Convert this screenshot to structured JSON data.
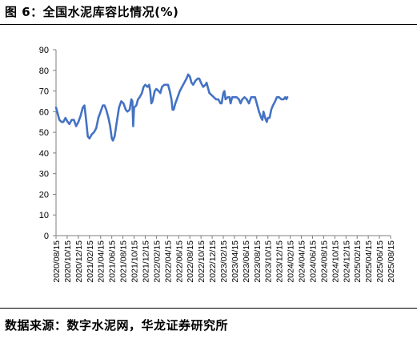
{
  "header": {
    "title": "图 6：全国水泥库容比情况(%)"
  },
  "footer": {
    "source": "数据来源：数字水泥网，华龙证券研究所"
  },
  "chart_data": {
    "type": "line",
    "title": "",
    "xlabel": "",
    "ylabel": "",
    "ylim": [
      0,
      90
    ],
    "yticks": [
      0,
      10,
      20,
      30,
      40,
      50,
      60,
      70,
      80,
      90
    ],
    "grid": false,
    "line_color": "#4472C4",
    "x_tick_labels": [
      "2020/08/15",
      "2020/10/15",
      "2020/12/15",
      "2021/02/15",
      "2021/04/15",
      "2021/06/15",
      "2021/08/15",
      "2021/10/15",
      "2021/12/15",
      "2022/02/15",
      "2022/04/15",
      "2022/06/15",
      "2022/08/15",
      "2022/10/15",
      "2022/12/15",
      "2023/02/15",
      "2023/04/15",
      "2023/06/15",
      "2023/08/15",
      "2023/10/15",
      "2023/12/15",
      "2024/02/15",
      "2024/04/15",
      "2024/06/15",
      "2024/08/15",
      "2024/10/15",
      "2024/12/15",
      "2025/02/15",
      "2025/04/15",
      "2025/06/15",
      "2025/08/15"
    ],
    "series": [
      {
        "values": [
          [
            0,
            62
          ],
          [
            0.1,
            60
          ],
          [
            0.3,
            56
          ],
          [
            0.5,
            55
          ],
          [
            0.65,
            55
          ],
          [
            0.85,
            57
          ],
          [
            1.05,
            55
          ],
          [
            1.2,
            54
          ],
          [
            1.4,
            56
          ],
          [
            1.6,
            56
          ],
          [
            1.8,
            53
          ],
          [
            2.0,
            55
          ],
          [
            2.2,
            58
          ],
          [
            2.4,
            62
          ],
          [
            2.55,
            63
          ],
          [
            2.7,
            56
          ],
          [
            2.85,
            48
          ],
          [
            3.0,
            47
          ],
          [
            3.2,
            49
          ],
          [
            3.4,
            50
          ],
          [
            3.6,
            52
          ],
          [
            3.8,
            57
          ],
          [
            4.0,
            60
          ],
          [
            4.2,
            63
          ],
          [
            4.35,
            63
          ],
          [
            4.5,
            61
          ],
          [
            4.7,
            57
          ],
          [
            4.85,
            53
          ],
          [
            5.0,
            47
          ],
          [
            5.1,
            46
          ],
          [
            5.25,
            48
          ],
          [
            5.45,
            55
          ],
          [
            5.65,
            62
          ],
          [
            5.85,
            65
          ],
          [
            6.05,
            64
          ],
          [
            6.25,
            61
          ],
          [
            6.4,
            60
          ],
          [
            6.6,
            61
          ],
          [
            6.75,
            66
          ],
          [
            6.85,
            65
          ],
          [
            6.92,
            53
          ],
          [
            7.0,
            62
          ],
          [
            7.2,
            63
          ],
          [
            7.35,
            66
          ],
          [
            7.5,
            67
          ],
          [
            7.7,
            69
          ],
          [
            7.85,
            72
          ],
          [
            8.0,
            73
          ],
          [
            8.2,
            72
          ],
          [
            8.35,
            73
          ],
          [
            8.45,
            70
          ],
          [
            8.55,
            64
          ],
          [
            8.65,
            65
          ],
          [
            8.85,
            70
          ],
          [
            9.0,
            71
          ],
          [
            9.2,
            70
          ],
          [
            9.35,
            69
          ],
          [
            9.5,
            72
          ],
          [
            9.7,
            73
          ],
          [
            9.9,
            73
          ],
          [
            10.05,
            73
          ],
          [
            10.2,
            70
          ],
          [
            10.35,
            66
          ],
          [
            10.45,
            61
          ],
          [
            10.55,
            61
          ],
          [
            10.7,
            64
          ],
          [
            10.9,
            67
          ],
          [
            11.1,
            70
          ],
          [
            11.3,
            72
          ],
          [
            11.5,
            74
          ],
          [
            11.7,
            76
          ],
          [
            11.85,
            78
          ],
          [
            12.0,
            77
          ],
          [
            12.15,
            74
          ],
          [
            12.3,
            73
          ],
          [
            12.5,
            75
          ],
          [
            12.7,
            76
          ],
          [
            12.85,
            76
          ],
          [
            13.0,
            74
          ],
          [
            13.2,
            72
          ],
          [
            13.4,
            73
          ],
          [
            13.5,
            74
          ],
          [
            13.6,
            72
          ],
          [
            13.75,
            69
          ],
          [
            13.95,
            68
          ],
          [
            14.15,
            67
          ],
          [
            14.35,
            66
          ],
          [
            14.55,
            66
          ],
          [
            14.75,
            64
          ],
          [
            14.85,
            64
          ],
          [
            15.0,
            69
          ],
          [
            15.1,
            70
          ],
          [
            15.2,
            66
          ],
          [
            15.4,
            67
          ],
          [
            15.55,
            67
          ],
          [
            15.65,
            64
          ],
          [
            15.8,
            67
          ],
          [
            16.0,
            67
          ],
          [
            16.2,
            67
          ],
          [
            16.4,
            66
          ],
          [
            16.55,
            64
          ],
          [
            16.7,
            66
          ],
          [
            16.9,
            67
          ],
          [
            17.1,
            66
          ],
          [
            17.3,
            64
          ],
          [
            17.5,
            67
          ],
          [
            17.7,
            67
          ],
          [
            17.85,
            67
          ],
          [
            18.0,
            64
          ],
          [
            18.2,
            60
          ],
          [
            18.4,
            57
          ],
          [
            18.5,
            56
          ],
          [
            18.6,
            60
          ],
          [
            18.75,
            57
          ],
          [
            18.9,
            55
          ],
          [
            19.0,
            57
          ],
          [
            19.15,
            57
          ],
          [
            19.3,
            61
          ],
          [
            19.45,
            63
          ],
          [
            19.65,
            65
          ],
          [
            19.8,
            67
          ],
          [
            20.0,
            67
          ],
          [
            20.2,
            66
          ],
          [
            20.4,
            66
          ],
          [
            20.55,
            67
          ],
          [
            20.65,
            66
          ],
          [
            20.75,
            67
          ]
        ]
      }
    ]
  }
}
